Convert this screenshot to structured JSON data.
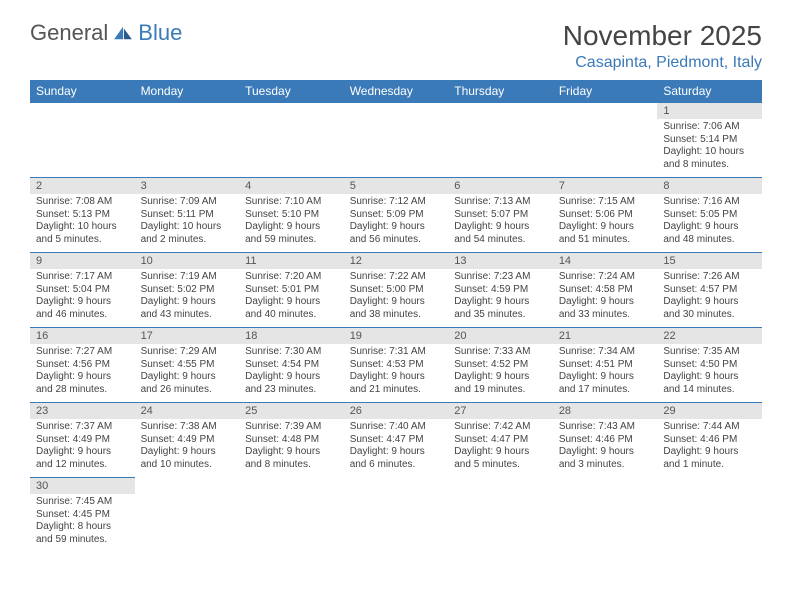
{
  "brand": {
    "part1": "General",
    "part2": "Blue"
  },
  "title": "November 2025",
  "location": "Casapinta, Piedmont, Italy",
  "colors": {
    "header_bg": "#3b7ab8",
    "header_text": "#ffffff",
    "daynum_bg": "#e5e5e5",
    "divider": "#3b7ab8",
    "text": "#444444",
    "background": "#ffffff"
  },
  "day_labels": [
    "Sunday",
    "Monday",
    "Tuesday",
    "Wednesday",
    "Thursday",
    "Friday",
    "Saturday"
  ],
  "weeks": [
    [
      null,
      null,
      null,
      null,
      null,
      null,
      {
        "n": "1",
        "sunrise": "Sunrise: 7:06 AM",
        "sunset": "Sunset: 5:14 PM",
        "daylight": "Daylight: 10 hours and 8 minutes."
      }
    ],
    [
      {
        "n": "2",
        "sunrise": "Sunrise: 7:08 AM",
        "sunset": "Sunset: 5:13 PM",
        "daylight": "Daylight: 10 hours and 5 minutes."
      },
      {
        "n": "3",
        "sunrise": "Sunrise: 7:09 AM",
        "sunset": "Sunset: 5:11 PM",
        "daylight": "Daylight: 10 hours and 2 minutes."
      },
      {
        "n": "4",
        "sunrise": "Sunrise: 7:10 AM",
        "sunset": "Sunset: 5:10 PM",
        "daylight": "Daylight: 9 hours and 59 minutes."
      },
      {
        "n": "5",
        "sunrise": "Sunrise: 7:12 AM",
        "sunset": "Sunset: 5:09 PM",
        "daylight": "Daylight: 9 hours and 56 minutes."
      },
      {
        "n": "6",
        "sunrise": "Sunrise: 7:13 AM",
        "sunset": "Sunset: 5:07 PM",
        "daylight": "Daylight: 9 hours and 54 minutes."
      },
      {
        "n": "7",
        "sunrise": "Sunrise: 7:15 AM",
        "sunset": "Sunset: 5:06 PM",
        "daylight": "Daylight: 9 hours and 51 minutes."
      },
      {
        "n": "8",
        "sunrise": "Sunrise: 7:16 AM",
        "sunset": "Sunset: 5:05 PM",
        "daylight": "Daylight: 9 hours and 48 minutes."
      }
    ],
    [
      {
        "n": "9",
        "sunrise": "Sunrise: 7:17 AM",
        "sunset": "Sunset: 5:04 PM",
        "daylight": "Daylight: 9 hours and 46 minutes."
      },
      {
        "n": "10",
        "sunrise": "Sunrise: 7:19 AM",
        "sunset": "Sunset: 5:02 PM",
        "daylight": "Daylight: 9 hours and 43 minutes."
      },
      {
        "n": "11",
        "sunrise": "Sunrise: 7:20 AM",
        "sunset": "Sunset: 5:01 PM",
        "daylight": "Daylight: 9 hours and 40 minutes."
      },
      {
        "n": "12",
        "sunrise": "Sunrise: 7:22 AM",
        "sunset": "Sunset: 5:00 PM",
        "daylight": "Daylight: 9 hours and 38 minutes."
      },
      {
        "n": "13",
        "sunrise": "Sunrise: 7:23 AM",
        "sunset": "Sunset: 4:59 PM",
        "daylight": "Daylight: 9 hours and 35 minutes."
      },
      {
        "n": "14",
        "sunrise": "Sunrise: 7:24 AM",
        "sunset": "Sunset: 4:58 PM",
        "daylight": "Daylight: 9 hours and 33 minutes."
      },
      {
        "n": "15",
        "sunrise": "Sunrise: 7:26 AM",
        "sunset": "Sunset: 4:57 PM",
        "daylight": "Daylight: 9 hours and 30 minutes."
      }
    ],
    [
      {
        "n": "16",
        "sunrise": "Sunrise: 7:27 AM",
        "sunset": "Sunset: 4:56 PM",
        "daylight": "Daylight: 9 hours and 28 minutes."
      },
      {
        "n": "17",
        "sunrise": "Sunrise: 7:29 AM",
        "sunset": "Sunset: 4:55 PM",
        "daylight": "Daylight: 9 hours and 26 minutes."
      },
      {
        "n": "18",
        "sunrise": "Sunrise: 7:30 AM",
        "sunset": "Sunset: 4:54 PM",
        "daylight": "Daylight: 9 hours and 23 minutes."
      },
      {
        "n": "19",
        "sunrise": "Sunrise: 7:31 AM",
        "sunset": "Sunset: 4:53 PM",
        "daylight": "Daylight: 9 hours and 21 minutes."
      },
      {
        "n": "20",
        "sunrise": "Sunrise: 7:33 AM",
        "sunset": "Sunset: 4:52 PM",
        "daylight": "Daylight: 9 hours and 19 minutes."
      },
      {
        "n": "21",
        "sunrise": "Sunrise: 7:34 AM",
        "sunset": "Sunset: 4:51 PM",
        "daylight": "Daylight: 9 hours and 17 minutes."
      },
      {
        "n": "22",
        "sunrise": "Sunrise: 7:35 AM",
        "sunset": "Sunset: 4:50 PM",
        "daylight": "Daylight: 9 hours and 14 minutes."
      }
    ],
    [
      {
        "n": "23",
        "sunrise": "Sunrise: 7:37 AM",
        "sunset": "Sunset: 4:49 PM",
        "daylight": "Daylight: 9 hours and 12 minutes."
      },
      {
        "n": "24",
        "sunrise": "Sunrise: 7:38 AM",
        "sunset": "Sunset: 4:49 PM",
        "daylight": "Daylight: 9 hours and 10 minutes."
      },
      {
        "n": "25",
        "sunrise": "Sunrise: 7:39 AM",
        "sunset": "Sunset: 4:48 PM",
        "daylight": "Daylight: 9 hours and 8 minutes."
      },
      {
        "n": "26",
        "sunrise": "Sunrise: 7:40 AM",
        "sunset": "Sunset: 4:47 PM",
        "daylight": "Daylight: 9 hours and 6 minutes."
      },
      {
        "n": "27",
        "sunrise": "Sunrise: 7:42 AM",
        "sunset": "Sunset: 4:47 PM",
        "daylight": "Daylight: 9 hours and 5 minutes."
      },
      {
        "n": "28",
        "sunrise": "Sunrise: 7:43 AM",
        "sunset": "Sunset: 4:46 PM",
        "daylight": "Daylight: 9 hours and 3 minutes."
      },
      {
        "n": "29",
        "sunrise": "Sunrise: 7:44 AM",
        "sunset": "Sunset: 4:46 PM",
        "daylight": "Daylight: 9 hours and 1 minute."
      }
    ],
    [
      {
        "n": "30",
        "sunrise": "Sunrise: 7:45 AM",
        "sunset": "Sunset: 4:45 PM",
        "daylight": "Daylight: 8 hours and 59 minutes."
      },
      null,
      null,
      null,
      null,
      null,
      null
    ]
  ]
}
